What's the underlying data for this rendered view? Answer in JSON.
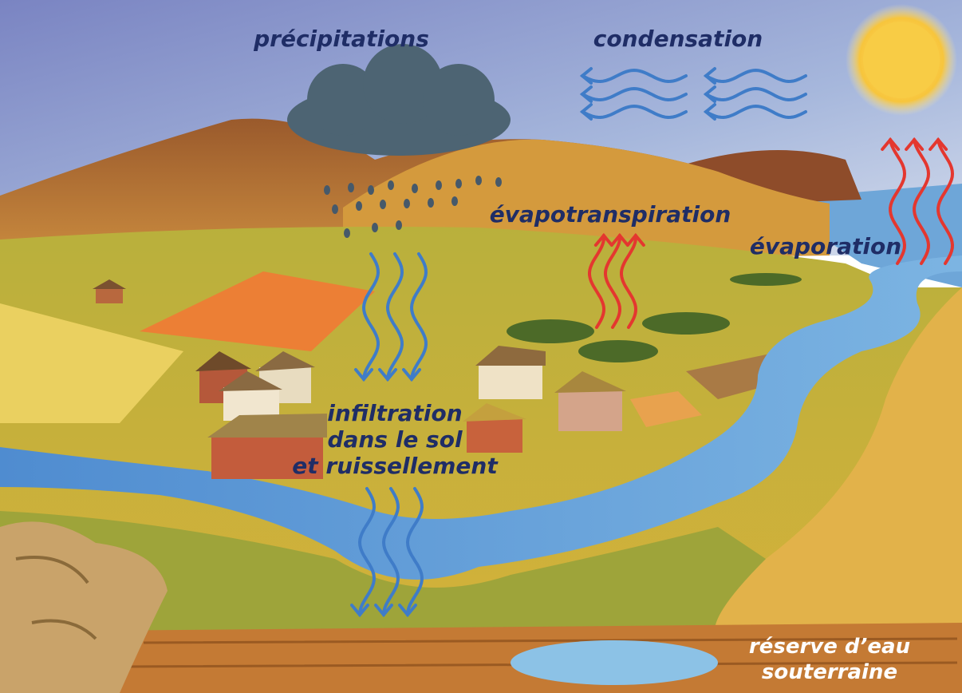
{
  "labels": {
    "precipitations": "précipitations",
    "condensation": "condensation",
    "evapotranspiration": "évapotranspiration",
    "evaporation": "évaporation",
    "infiltration": [
      "infiltration",
      "dans le sol",
      "et ruissellement"
    ],
    "reserve": [
      "réserve d’eau",
      "souterraine"
    ]
  }
}
